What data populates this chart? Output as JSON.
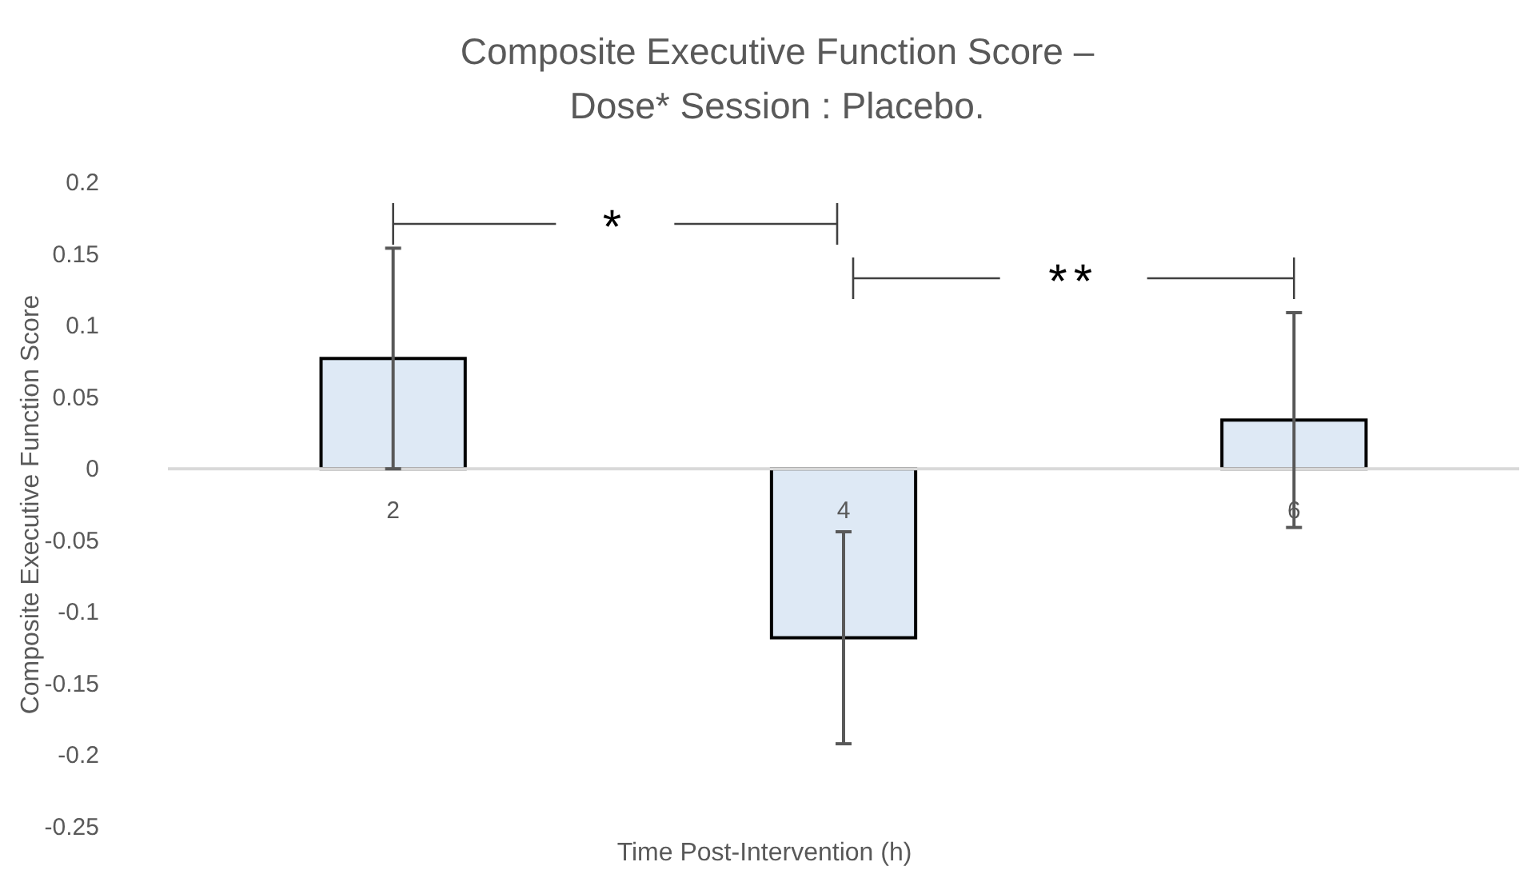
{
  "chart_data": {
    "type": "bar",
    "title": "Composite Executive Function Score –\nDose* Session : Placebo.",
    "xlabel": "Time Post-Intervention (h)",
    "ylabel": "Composite Executive Function Score",
    "categories": [
      "2",
      "4",
      "6"
    ],
    "values": [
      0.077,
      -0.118,
      0.034
    ],
    "errors": [
      0.077,
      0.074,
      0.075
    ],
    "color": "#dee9f5",
    "ylim": [
      -0.25,
      0.2
    ],
    "yticks": [
      -0.25,
      -0.2,
      -0.15,
      -0.1,
      -0.05,
      0,
      0.05,
      0.1,
      0.15,
      0.2
    ],
    "grid": false,
    "annotations": [
      "*",
      "**"
    ]
  }
}
